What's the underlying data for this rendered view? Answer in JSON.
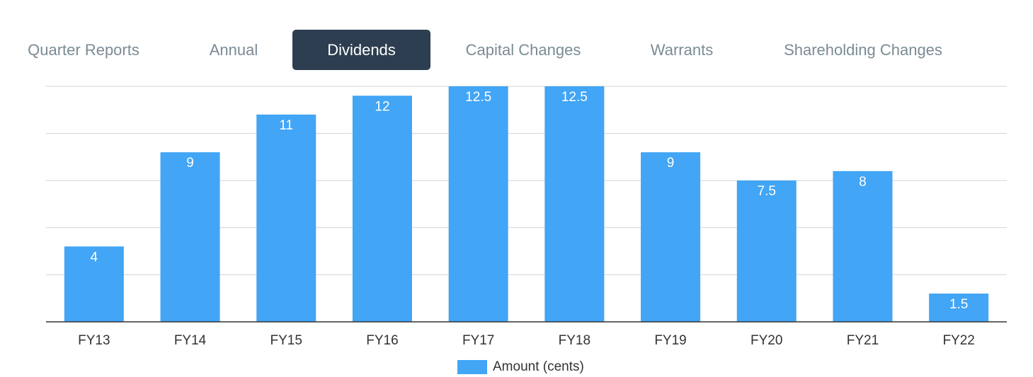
{
  "tabs": [
    {
      "label": "Quarter Reports",
      "active": false
    },
    {
      "label": "Annual",
      "active": false
    },
    {
      "label": "Dividends",
      "active": true
    },
    {
      "label": "Capital Changes",
      "active": false
    },
    {
      "label": "Warrants",
      "active": false
    },
    {
      "label": "Shareholding Changes",
      "active": false
    }
  ],
  "colors": {
    "bar": "#42a5f5",
    "active_tab_bg": "#2c3e50",
    "tab_text": "#7b8b94",
    "gridline": "#d3d3d3",
    "axis": "#333333"
  },
  "chart_data": {
    "type": "bar",
    "categories": [
      "FY13",
      "FY14",
      "FY15",
      "FY16",
      "FY17",
      "FY18",
      "FY19",
      "FY20",
      "FY21",
      "FY22"
    ],
    "series": [
      {
        "name": "Amount (cents)",
        "values": [
          4,
          9,
          11,
          12,
          12.5,
          12.5,
          9,
          7.5,
          8,
          1.5
        ]
      }
    ],
    "data_labels": [
      "4",
      "9",
      "11",
      "12",
      "12.5",
      "12.5",
      "9",
      "7.5",
      "8",
      "1.5"
    ],
    "title": "",
    "xlabel": "",
    "ylabel": "",
    "ylim": [
      0,
      12.5
    ],
    "gridlines": true,
    "y_tick_labels_shown": false,
    "legend_position": "bottom"
  }
}
